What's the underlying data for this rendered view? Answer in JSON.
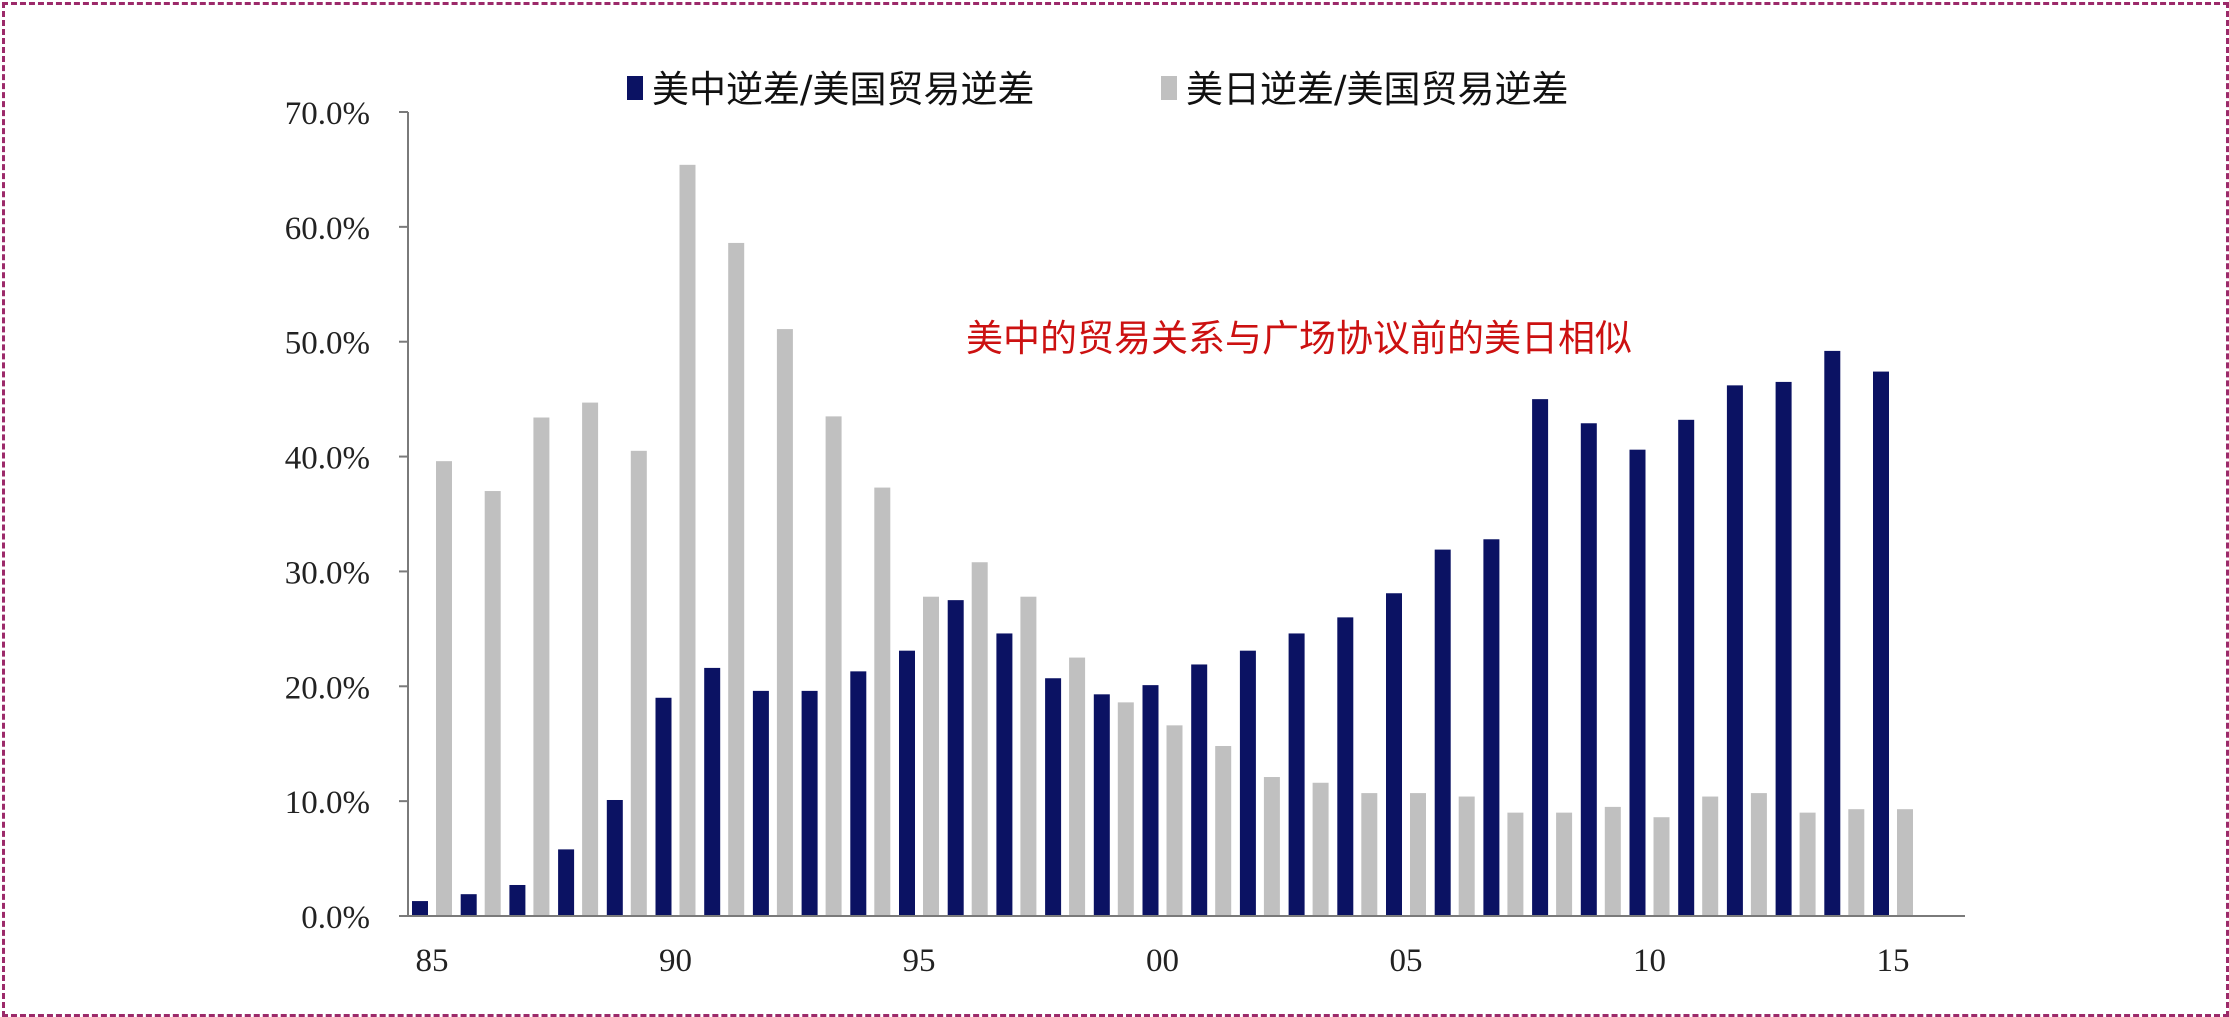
{
  "chart_data": {
    "type": "bar",
    "title": "",
    "xlabel": "",
    "ylabel": "",
    "ylim": [
      0,
      70
    ],
    "y_tick_labels": [
      "0.0%",
      "10.0%",
      "20.0%",
      "30.0%",
      "40.0%",
      "50.0%",
      "60.0%",
      "70.0%"
    ],
    "x_tick_labels": [
      "85",
      "90",
      "95",
      "00",
      "05",
      "10",
      "15"
    ],
    "x_tick_years": [
      1985,
      1990,
      1995,
      2000,
      2005,
      2010,
      2015
    ],
    "categories": [
      1985,
      1986,
      1987,
      1988,
      1989,
      1990,
      1991,
      1992,
      1993,
      1994,
      1995,
      1996,
      1997,
      1998,
      1999,
      2000,
      2001,
      2002,
      2003,
      2004,
      2005,
      2006,
      2007,
      2008,
      2009,
      2010,
      2011,
      2012,
      2013,
      2014,
      2015
    ],
    "series": [
      {
        "name": "美中逆差/美国贸易逆差",
        "color": "#0b1263",
        "values": [
          1.3,
          1.9,
          2.7,
          5.8,
          10.1,
          19.0,
          21.6,
          19.6,
          19.6,
          21.3,
          23.1,
          27.5,
          24.6,
          20.7,
          19.3,
          20.1,
          21.9,
          23.1,
          24.6,
          26.0,
          28.1,
          31.9,
          32.8,
          45.0,
          42.9,
          40.6,
          43.2,
          46.2,
          46.5,
          49.2,
          47.4
        ]
      },
      {
        "name": "美日逆差/美国贸易逆差",
        "color": "#c0c0c0",
        "values": [
          39.6,
          37.0,
          43.4,
          44.7,
          40.5,
          65.4,
          58.6,
          51.1,
          43.5,
          37.3,
          27.8,
          30.8,
          27.8,
          22.5,
          18.6,
          16.6,
          14.8,
          12.1,
          11.6,
          10.7,
          10.7,
          10.4,
          9.0,
          9.0,
          9.5,
          8.6,
          10.4,
          10.7,
          9.0,
          9.3,
          9.3
        ]
      }
    ],
    "legend_position": "top-center",
    "grid": false,
    "annotation": {
      "text": "美中的贸易关系与广场协议前的美日相似",
      "color": "#cc1111"
    }
  }
}
